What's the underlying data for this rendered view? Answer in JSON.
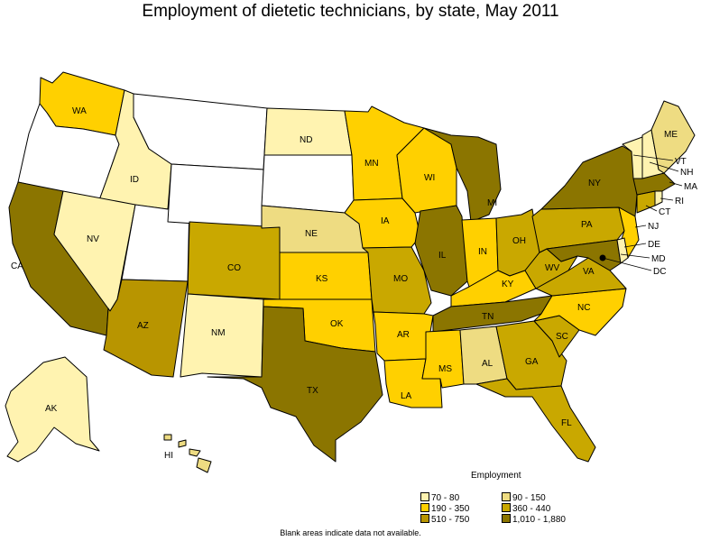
{
  "title": "Employment of dietetic technicians, by state, May 2011",
  "colors": {
    "c1": "#fff3b0",
    "c2": "#ffec8b",
    "c3": "#ffd000",
    "c4": "#eedc82",
    "c5": "#c9a800",
    "c6": "#8b7500",
    "nodata": "#ffffff"
  },
  "legend": {
    "title": "Employment",
    "items": [
      {
        "label": "70 - 80",
        "color": "#fff3b0"
      },
      {
        "label": "90 - 150",
        "color": "#eedc82"
      },
      {
        "label": "190 - 350",
        "color": "#ffd000"
      },
      {
        "label": "360 - 440",
        "color": "#c9a800"
      },
      {
        "label": "510 - 750",
        "color": "#b89500"
      },
      {
        "label": "1,010 - 1,880",
        "color": "#8b7500"
      }
    ]
  },
  "footnote": "Blank areas indicate data not available.",
  "states": {
    "WA": {
      "label": "WA",
      "range": "190 - 350"
    },
    "OR": {
      "label": "",
      "range": "no data"
    },
    "CA": {
      "label": "CA",
      "range": "1,010 - 1,880"
    },
    "ID": {
      "label": "ID",
      "range": "70 - 80"
    },
    "NV": {
      "label": "NV",
      "range": "70 - 80"
    },
    "UT": {
      "label": "",
      "range": "no data"
    },
    "AZ": {
      "label": "AZ",
      "range": "510 - 750"
    },
    "MT": {
      "label": "",
      "range": "no data"
    },
    "WY": {
      "label": "",
      "range": "no data"
    },
    "CO": {
      "label": "CO",
      "range": "360 - 440"
    },
    "NM": {
      "label": "NM",
      "range": "70 - 80"
    },
    "ND": {
      "label": "ND",
      "range": "70 - 80"
    },
    "SD": {
      "label": "",
      "range": "no data"
    },
    "NE": {
      "label": "NE",
      "range": "90 - 150"
    },
    "KS": {
      "label": "KS",
      "range": "190 - 350"
    },
    "OK": {
      "label": "OK",
      "range": "190 - 350"
    },
    "TX": {
      "label": "TX",
      "range": "1,010 - 1,880"
    },
    "MN": {
      "label": "MN",
      "range": "190 - 350"
    },
    "IA": {
      "label": "IA",
      "range": "190 - 350"
    },
    "MO": {
      "label": "MO",
      "range": "360 - 440"
    },
    "AR": {
      "label": "AR",
      "range": "190 - 350"
    },
    "LA": {
      "label": "LA",
      "range": "190 - 350"
    },
    "WI": {
      "label": "WI",
      "range": "190 - 350"
    },
    "IL": {
      "label": "IL",
      "range": "1,010 - 1,880"
    },
    "MI": {
      "label": "MI",
      "range": "1,010 - 1,880"
    },
    "IN": {
      "label": "IN",
      "range": "190 - 350"
    },
    "OH": {
      "label": "OH",
      "range": "360 - 440"
    },
    "KY": {
      "label": "KY",
      "range": "190 - 350"
    },
    "TN": {
      "label": "TN",
      "range": "1,010 - 1,880"
    },
    "MS": {
      "label": "MS",
      "range": "190 - 350"
    },
    "AL": {
      "label": "AL",
      "range": "90 - 150"
    },
    "GA": {
      "label": "GA",
      "range": "360 - 440"
    },
    "FL": {
      "label": "FL",
      "range": "360 - 440"
    },
    "SC": {
      "label": "SC",
      "range": "360 - 440"
    },
    "NC": {
      "label": "NC",
      "range": "190 - 350"
    },
    "VA": {
      "label": "VA",
      "range": "360 - 440"
    },
    "WV": {
      "label": "WV",
      "range": "360 - 440"
    },
    "PA": {
      "label": "PA",
      "range": "360 - 440"
    },
    "NY": {
      "label": "NY",
      "range": "1,010 - 1,880"
    },
    "NJ": {
      "label": "NJ",
      "range": "190 - 350"
    },
    "DE": {
      "label": "DE",
      "range": "70 - 80"
    },
    "MD": {
      "label": "MD",
      "range": "1,010 - 1,880"
    },
    "DC": {
      "label": "DC",
      "range": "no data"
    },
    "CT": {
      "label": "CT",
      "range": "360 - 440"
    },
    "RI": {
      "label": "RI",
      "range": "70 - 80"
    },
    "MA": {
      "label": "MA",
      "range": "1,010 - 1,880"
    },
    "VT": {
      "label": "VT",
      "range": "70 - 80"
    },
    "NH": {
      "label": "NH",
      "range": "70 - 80"
    },
    "ME": {
      "label": "ME",
      "range": "90 - 150"
    },
    "AK": {
      "label": "AK",
      "range": "70 - 80"
    },
    "HI": {
      "label": "HI",
      "range": "90 - 150"
    }
  }
}
